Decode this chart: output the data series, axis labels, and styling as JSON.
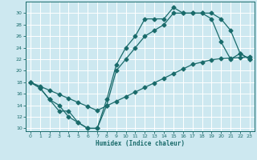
{
  "xlabel": "Humidex (Indice chaleur)",
  "bg_color": "#cde8f0",
  "line_color": "#1a6b6b",
  "grid_color": "#ffffff",
  "xlim": [
    -0.5,
    23.5
  ],
  "ylim": [
    9.5,
    32
  ],
  "xticks": [
    0,
    1,
    2,
    3,
    4,
    5,
    6,
    7,
    8,
    9,
    10,
    11,
    12,
    13,
    14,
    15,
    16,
    17,
    18,
    19,
    20,
    21,
    22,
    23
  ],
  "yticks": [
    10,
    12,
    14,
    16,
    18,
    20,
    22,
    24,
    26,
    28,
    30
  ],
  "line1_x": [
    0,
    1,
    2,
    3,
    4,
    5,
    6,
    7,
    8,
    9,
    10,
    11,
    12,
    13,
    14,
    15,
    16,
    17,
    18,
    19,
    20,
    21,
    22,
    23
  ],
  "line1_y": [
    18,
    17,
    15,
    13,
    13,
    11,
    10,
    10,
    15,
    21,
    24,
    26,
    29,
    29,
    29,
    31,
    30,
    30,
    30,
    30,
    29,
    27,
    23,
    22
  ],
  "line2_x": [
    0,
    1,
    2,
    3,
    4,
    5,
    6,
    7,
    8,
    9,
    10,
    11,
    12,
    13,
    14,
    15,
    16,
    17,
    18,
    19,
    20,
    21,
    22,
    23
  ],
  "line2_y": [
    18,
    17,
    15,
    14,
    12,
    11,
    10,
    10,
    14,
    20,
    22,
    24,
    26,
    27,
    28,
    30,
    30,
    30,
    30,
    29,
    25,
    22,
    23,
    22
  ],
  "line3_x": [
    0,
    1,
    2,
    3,
    4,
    5,
    6,
    7,
    8,
    9,
    10,
    11,
    12,
    13,
    14,
    15,
    16,
    17,
    18,
    19,
    20,
    21,
    22,
    23
  ],
  "line3_y": [
    18,
    17.3,
    16.6,
    15.9,
    15.2,
    14.5,
    13.8,
    13.1,
    13.9,
    14.7,
    15.5,
    16.3,
    17.1,
    17.9,
    18.7,
    19.5,
    20.3,
    21.1,
    21.5,
    21.9,
    22.1,
    22.2,
    22.3,
    22.4
  ]
}
